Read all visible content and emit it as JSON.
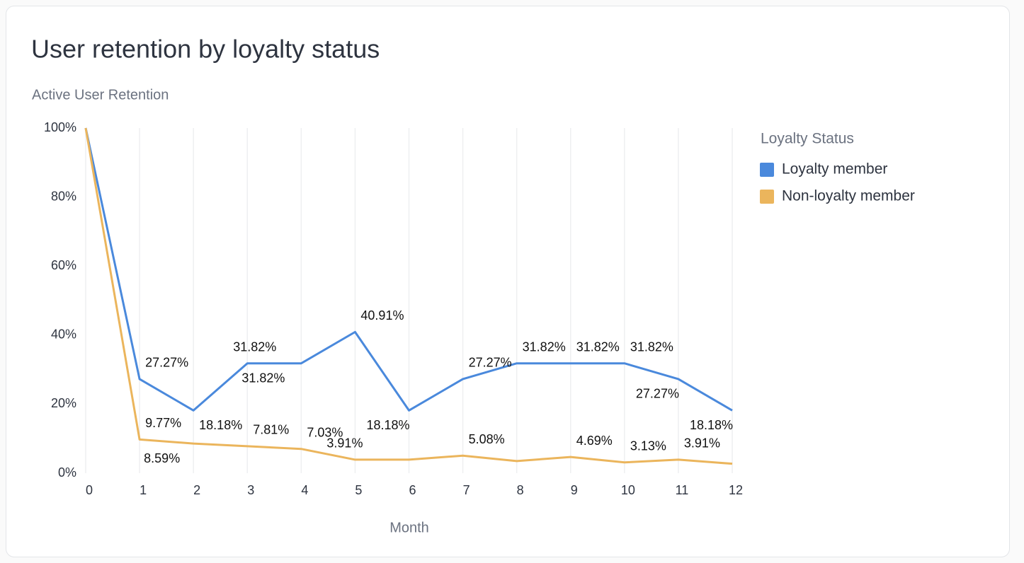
{
  "chart_data": {
    "type": "line",
    "title": "User retention by loyalty status",
    "y_label": "Active User Retention",
    "x_label": "Month",
    "legend_title": "Loyalty Status",
    "legend": "right",
    "grid": "x",
    "x": [
      0,
      1,
      2,
      3,
      4,
      5,
      6,
      7,
      8,
      9,
      10,
      11,
      12
    ],
    "xlim": [
      0,
      12
    ],
    "xticks": [
      0,
      1,
      2,
      3,
      4,
      5,
      6,
      7,
      8,
      9,
      10,
      11,
      12
    ],
    "ylim": [
      0,
      100
    ],
    "yticks": [
      {
        "value": 0,
        "label": "0%"
      },
      {
        "value": 20,
        "label": "20%"
      },
      {
        "value": 40,
        "label": "40%"
      },
      {
        "value": 60,
        "label": "60%"
      },
      {
        "value": 80,
        "label": "80%"
      },
      {
        "value": 100,
        "label": "100%"
      }
    ],
    "series": [
      {
        "name": "Loyalty member",
        "color": "#4a89dc",
        "values": [
          100,
          27.27,
          18.18,
          31.82,
          31.82,
          40.91,
          18.18,
          27.27,
          31.82,
          31.82,
          31.82,
          27.27,
          18.18
        ],
        "value_labels": [
          null,
          "27.27%",
          "18.18%",
          "31.82%",
          "31.82%",
          "40.91%",
          "18.18%",
          "27.27%",
          "31.82%",
          "31.82%",
          "31.82%",
          "27.27%",
          "18.18%"
        ]
      },
      {
        "name": "Non-loyalty member",
        "color": "#ebb55c",
        "values": [
          100,
          9.77,
          8.59,
          7.81,
          7.03,
          3.91,
          3.91,
          5.08,
          3.52,
          4.69,
          3.13,
          3.91,
          2.73
        ],
        "value_labels": [
          null,
          "9.77%",
          "8.59%",
          "7.81%",
          "7.03%",
          "3.91%",
          null,
          "5.08%",
          null,
          "4.69%",
          "3.13%",
          "3.91%",
          null
        ]
      }
    ]
  }
}
